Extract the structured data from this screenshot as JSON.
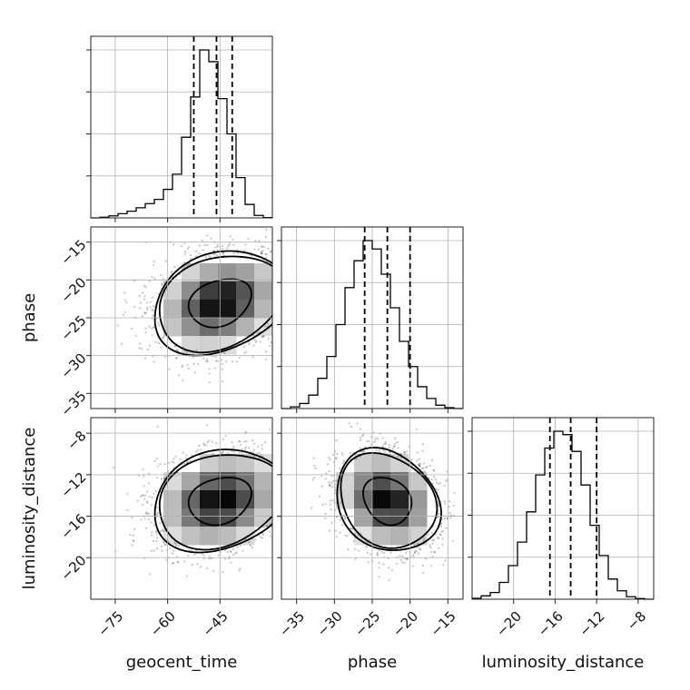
{
  "chart_data": {
    "type": "corner",
    "parameters": [
      {
        "label": "geocent_time",
        "range": [
          -82,
          -30
        ],
        "ticks": [
          -75,
          -60,
          -45
        ],
        "tick_labels": [
          "−75",
          "−60",
          "−45"
        ],
        "hist": {
          "edges_start": -82,
          "bin_width": 2.6,
          "counts": [
            0,
            0.004,
            0.012,
            0.025,
            0.04,
            0.06,
            0.085,
            0.11,
            0.17,
            0.26,
            0.48,
            0.72,
            1.0,
            0.93,
            0.71,
            0.5,
            0.24,
            0.08,
            0.015,
            0.002
          ]
        },
        "quantiles": [
          -52.5,
          -46.0,
          -41.5
        ]
      },
      {
        "label": "phase",
        "range": [
          -37,
          -13
        ],
        "ticks": [
          -35,
          -30,
          -25,
          -20,
          -15
        ],
        "tick_labels": [
          "−35",
          "−30",
          "−25",
          "−20",
          "−15"
        ],
        "hist": {
          "edges_start": -37,
          "bin_width": 1.2,
          "counts": [
            0,
            0.01,
            0.03,
            0.08,
            0.18,
            0.31,
            0.5,
            0.72,
            0.88,
            1.0,
            0.95,
            0.8,
            0.6,
            0.4,
            0.25,
            0.13,
            0.06,
            0.02,
            0.005,
            0
          ]
        },
        "quantiles": [
          -26.0,
          -23.0,
          -20.0
        ]
      },
      {
        "label": "luminosity_distance",
        "range": [
          -24,
          -6.5
        ],
        "ticks": [
          -20,
          -16,
          -12,
          -8
        ],
        "tick_labels": [
          "−20",
          "−16",
          "−12",
          "−8"
        ],
        "hist": {
          "edges_start": -24,
          "bin_width": 0.875,
          "counts": [
            0.005,
            0.02,
            0.04,
            0.1,
            0.2,
            0.34,
            0.52,
            0.74,
            0.9,
            1.0,
            0.98,
            0.88,
            0.68,
            0.44,
            0.26,
            0.12,
            0.05,
            0.015,
            0.004,
            0
          ]
        },
        "quantiles": [
          -16.5,
          -14.5,
          -12.0
        ]
      }
    ],
    "pairs": [
      {
        "x": 0,
        "y": 1,
        "mean": [
          -45.0,
          -23.0
        ],
        "sd": [
          9.0,
          3.2
        ],
        "rho": 0.25
      },
      {
        "x": 0,
        "y": 2,
        "mean": [
          -45.0,
          -14.5
        ],
        "sd": [
          9.0,
          2.3
        ],
        "rho": 0.2
      },
      {
        "x": 1,
        "y": 2,
        "mean": [
          -23.0,
          -14.5
        ],
        "sd": [
          3.2,
          2.3
        ],
        "rho": -0.2
      }
    ],
    "contour_levels": [
      0.39,
      0.86,
      0.99
    ],
    "grid": true
  }
}
